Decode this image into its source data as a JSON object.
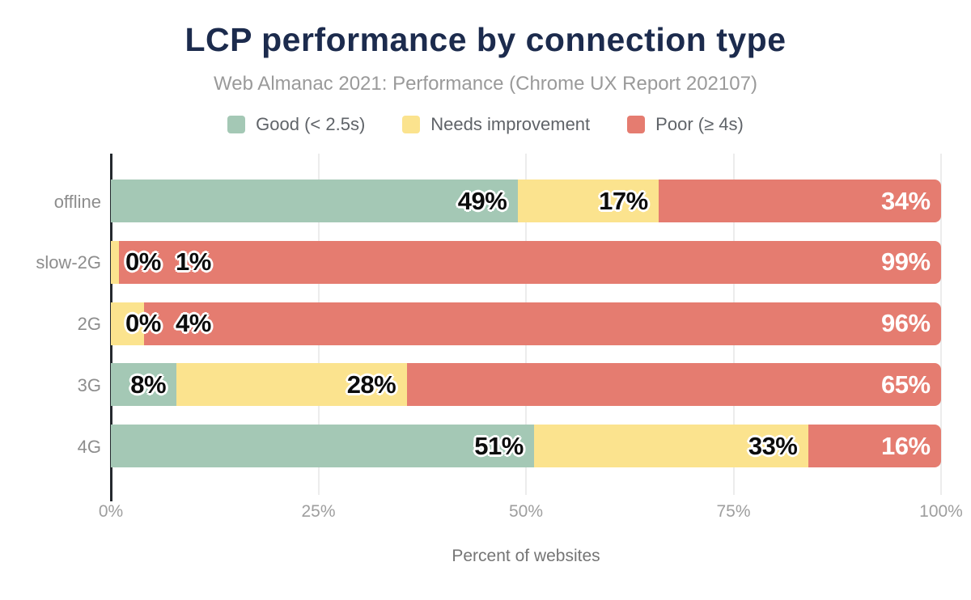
{
  "chart_data": {
    "type": "bar",
    "stacked": true,
    "orientation": "horizontal",
    "title": "LCP performance by connection type",
    "subtitle": "Web Almanac 2021: Performance (Chrome UX Report 202107)",
    "xlabel": "Percent of websites",
    "categories": [
      "offline",
      "slow-2G",
      "2G",
      "3G",
      "4G"
    ],
    "series": [
      {
        "name": "Good (< 2.5s)",
        "color": "#a4c8b5",
        "label_style": "dark",
        "values": [
          49,
          0,
          0,
          8,
          51
        ]
      },
      {
        "name": "Needs improvement",
        "color": "#fbe38e",
        "label_style": "dark",
        "values": [
          17,
          1,
          4,
          28,
          33
        ]
      },
      {
        "name": "Poor (≥ 4s)",
        "color": "#e57c70",
        "label_style": "light",
        "values": [
          34,
          99,
          96,
          65,
          16
        ]
      }
    ],
    "value_suffix": "%",
    "xlim": [
      0,
      100
    ],
    "x_ticks": [
      "0%",
      "25%",
      "50%",
      "75%",
      "100%"
    ],
    "x_tick_values": [
      0,
      25,
      50,
      75,
      100
    ],
    "grid": "vertical",
    "legend_position": "top"
  },
  "theme": {
    "background": "#ffffff",
    "title_color": "#1c2b4d",
    "subtitle_color": "#9a9a9a",
    "legend_text_color": "#5f6368",
    "category_label_color": "#8d8d8d",
    "tick_label_color": "#9e9e9e",
    "axis_title_color": "#757575",
    "gridline_color": "#ececec",
    "axis_line_color": "#24292e",
    "dark_value_label_color": "#0c0c0c",
    "light_value_label_color": "#ffffff"
  }
}
